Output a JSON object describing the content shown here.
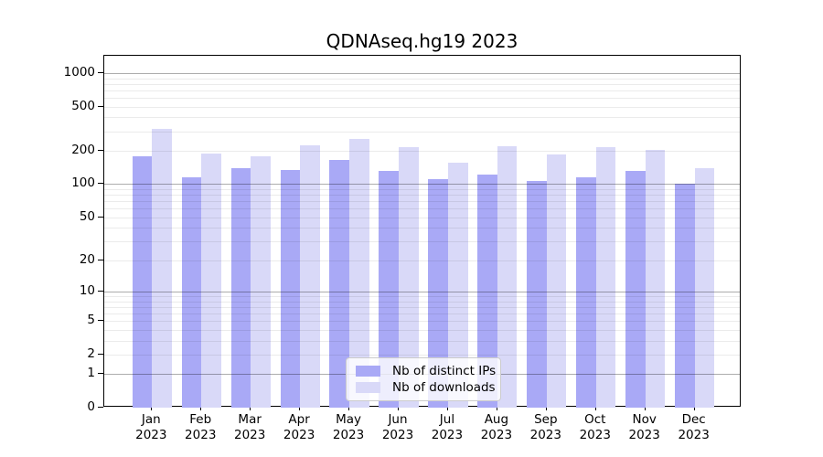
{
  "chart_data": {
    "type": "bar",
    "title": "QDNAseq.hg19 2023",
    "categories": [
      "Jan",
      "Feb",
      "Mar",
      "Apr",
      "May",
      "Jun",
      "Jul",
      "Aug",
      "Sep",
      "Oct",
      "Nov",
      "Dec"
    ],
    "category_year": "2023",
    "series": [
      {
        "name": "Nb of distinct IPs",
        "color": "#a9a9f6",
        "values": [
          178,
          115,
          139,
          134,
          167,
          131,
          112,
          121,
          106,
          116,
          131,
          100
        ]
      },
      {
        "name": "Nb of downloads",
        "color": "#d9d9f8",
        "values": [
          317,
          188,
          178,
          225,
          258,
          215,
          155,
          221,
          185,
          217,
          203,
          140
        ]
      }
    ],
    "yscale": "log1p",
    "yticks": [
      0,
      1,
      2,
      5,
      10,
      20,
      50,
      100,
      200,
      500,
      1000
    ],
    "ylim": [
      0,
      1420
    ],
    "grid": "both",
    "legend_position": "lower-center-inside",
    "axis_color": "#000000",
    "gridline_major_color": "#adadad",
    "gridline_minor_color": "#ebebeb",
    "background": "#ffffff"
  }
}
